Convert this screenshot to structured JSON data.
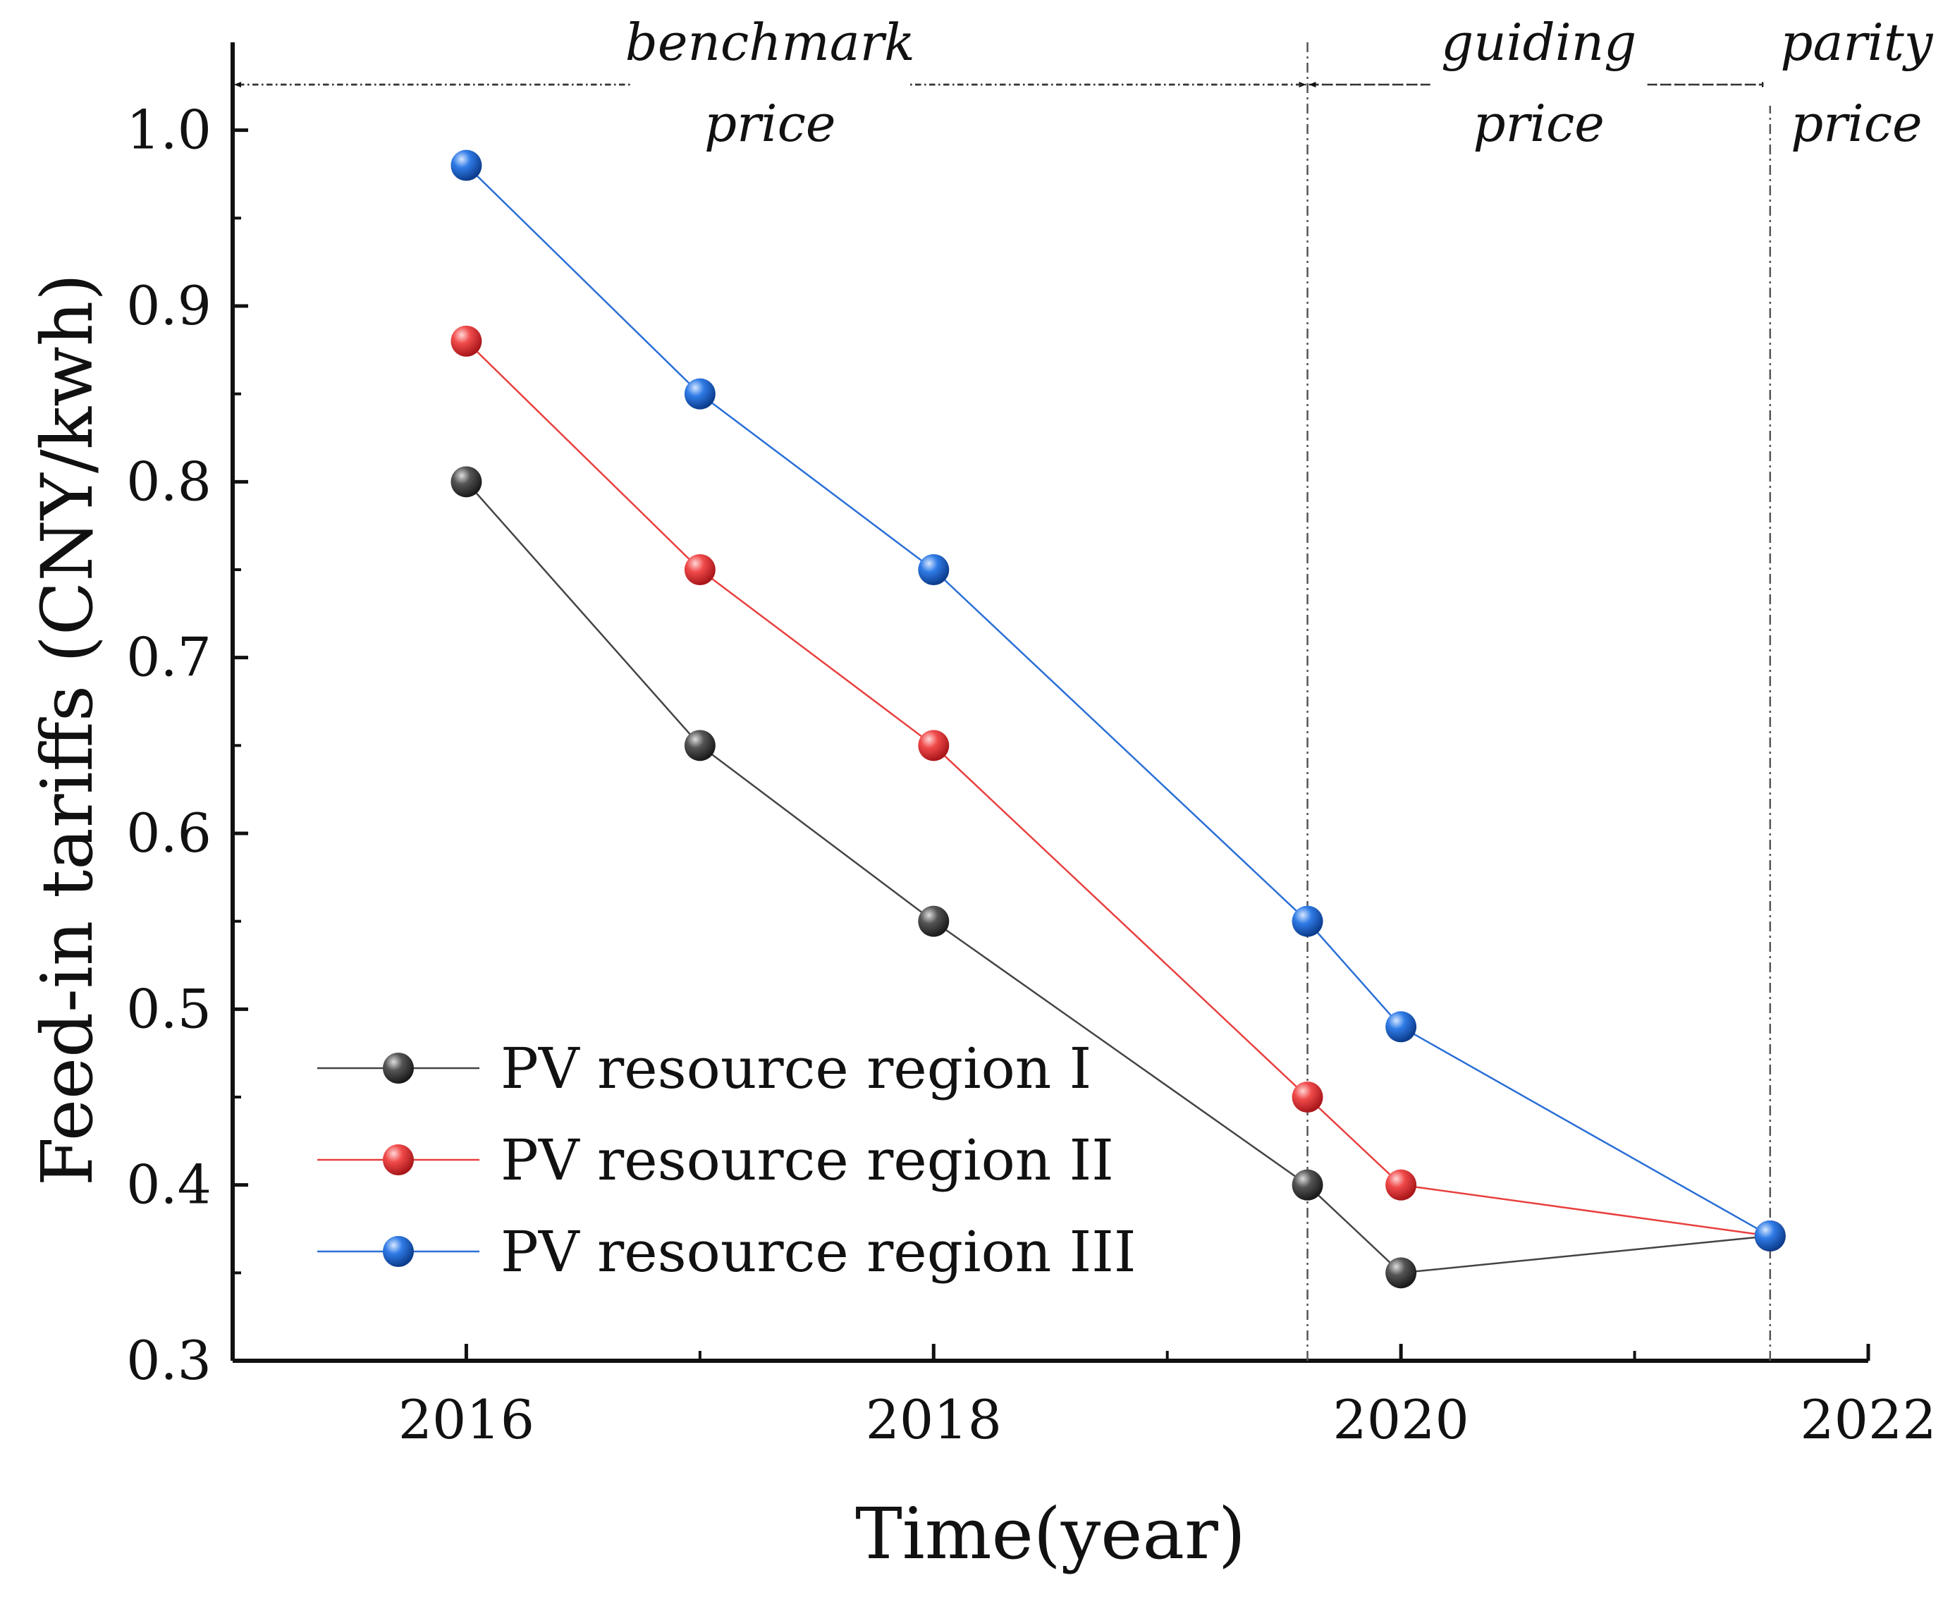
{
  "chart_data": {
    "type": "line",
    "xlabel": "Time(year)",
    "ylabel": "Feed-in tariffs (CNY/kwh)",
    "xlim": [
      2015,
      2022
    ],
    "ylim": [
      0.3,
      1.05
    ],
    "xticks": [
      2016,
      2018,
      2020,
      2022
    ],
    "xtick_labels": [
      "2016",
      "2018",
      "2020",
      "2022"
    ],
    "xminor": [
      2017,
      2019,
      2021
    ],
    "yticks": [
      0.3,
      0.4,
      0.5,
      0.6,
      0.7,
      0.8,
      0.9,
      1.0
    ],
    "ytick_labels": [
      "0.3",
      "0.4",
      "0.5",
      "0.6",
      "0.7",
      "0.8",
      "0.9",
      "1.0"
    ],
    "grid": false,
    "legend": "bottom-left",
    "series": [
      {
        "name": "PV resource region I",
        "color": "#444444",
        "x": [
          2016,
          2017,
          2018,
          2019.6,
          2020,
          2021.58
        ],
        "y": [
          0.8,
          0.65,
          0.55,
          0.4,
          0.35,
          0.371
        ]
      },
      {
        "name": "PV resource region II",
        "color": "#e8403f",
        "x": [
          2016,
          2017,
          2018,
          2019.6,
          2020,
          2021.58
        ],
        "y": [
          0.88,
          0.75,
          0.65,
          0.45,
          0.4,
          0.371
        ]
      },
      {
        "name": "PV resource region III",
        "color": "#2a6fd6",
        "x": [
          2016,
          2017,
          2018,
          2019.6,
          2020,
          2021.58
        ],
        "y": [
          0.98,
          0.85,
          0.75,
          0.55,
          0.49,
          0.371
        ]
      }
    ],
    "boundaries": [
      2019.6,
      2021.58
    ],
    "regions": [
      {
        "line1": "benchmark",
        "line2": "price",
        "x_start": 2015,
        "x_end": 2019.6
      },
      {
        "line1": "guiding",
        "line2": "price",
        "x_start": 2019.6,
        "x_end": 2021.58
      },
      {
        "line1": "parity",
        "line2": "price",
        "x_start": 2021.58,
        "x_end": 2022
      }
    ]
  }
}
